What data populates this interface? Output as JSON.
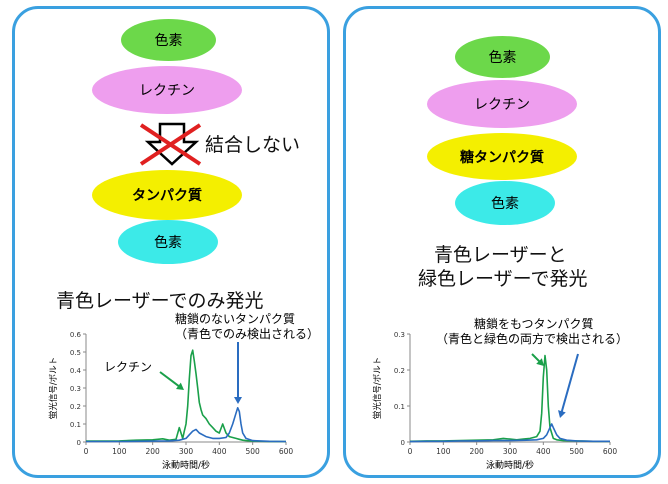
{
  "left": {
    "oval_pigment": "色素",
    "oval_lectin": "レクチン",
    "no_bind_label": "結合しない",
    "oval_protein": "タンパク質",
    "oval_pigment2": "色素",
    "caption": "青色レーザーでのみ発光",
    "annotation_glycan_line1": "糖鎖のないタンパク質",
    "annotation_glycan_line2": "（青色でのみ検出される）",
    "annotation_lectin": "レクチン"
  },
  "right": {
    "oval_pigment": "色素",
    "oval_lectin": "レクチン",
    "oval_glycoprotein": "糖タンパク質",
    "oval_pigment2": "色素",
    "caption_line1": "青色レーザーと",
    "caption_line2": "緑色レーザーで発光",
    "annotation_line1": "糖鎖をもつタンパク質",
    "annotation_line2": "（青色と緑色の両方で検出される）"
  },
  "colors": {
    "panel_border": "#3aa0e0",
    "green_trace": "#1aa04a",
    "blue_trace": "#2a6cc0"
  },
  "chart_data": [
    {
      "type": "line",
      "xlabel": "泳動時間/秒",
      "ylabel": "蛍光信号/ボルト",
      "xlim": [
        0,
        600
      ],
      "ylim": [
        0,
        0.6
      ],
      "xticks": [
        "0",
        "100",
        "200",
        "300",
        "400",
        "500",
        "600"
      ],
      "yticks": [
        "0",
        "0.1",
        "0.2",
        "0.3",
        "0.4",
        "0.5",
        "0.6"
      ],
      "series": [
        {
          "color": "green",
          "x": [
            0,
            50,
            100,
            150,
            200,
            230,
            250,
            270,
            280,
            290,
            295,
            300,
            305,
            310,
            315,
            320,
            325,
            330,
            335,
            340,
            345,
            350,
            360,
            370,
            380,
            390,
            400,
            410,
            420,
            430,
            440,
            450,
            460,
            470,
            480,
            500,
            550,
            600
          ],
          "y": [
            0.005,
            0.005,
            0.006,
            0.01,
            0.012,
            0.018,
            0.01,
            0.015,
            0.08,
            0.02,
            0.06,
            0.1,
            0.2,
            0.35,
            0.48,
            0.51,
            0.45,
            0.38,
            0.3,
            0.22,
            0.18,
            0.15,
            0.13,
            0.1,
            0.08,
            0.06,
            0.05,
            0.1,
            0.05,
            0.03,
            0.025,
            0.02,
            0.015,
            0.01,
            0.008,
            0.005,
            0.003,
            0.003
          ]
        },
        {
          "color": "blue",
          "x": [
            0,
            50,
            100,
            150,
            200,
            250,
            280,
            300,
            310,
            320,
            330,
            340,
            360,
            380,
            400,
            420,
            430,
            440,
            450,
            455,
            460,
            465,
            470,
            480,
            500,
            550,
            600
          ],
          "y": [
            0.003,
            0.003,
            0.003,
            0.004,
            0.005,
            0.006,
            0.01,
            0.02,
            0.04,
            0.06,
            0.07,
            0.05,
            0.03,
            0.02,
            0.02,
            0.025,
            0.05,
            0.1,
            0.16,
            0.19,
            0.17,
            0.1,
            0.05,
            0.02,
            0.008,
            0.004,
            0.003
          ]
        }
      ]
    },
    {
      "type": "line",
      "xlabel": "泳動時間/秒",
      "ylabel": "蛍光信号/ボルト",
      "xlim": [
        0,
        600
      ],
      "ylim": [
        0,
        0.3
      ],
      "xticks": [
        "0",
        "100",
        "200",
        "300",
        "400",
        "500",
        "600"
      ],
      "yticks": [
        "0",
        "0.1",
        "0.2",
        "0.3"
      ],
      "series": [
        {
          "color": "green",
          "x": [
            0,
            50,
            100,
            150,
            200,
            250,
            280,
            300,
            320,
            340,
            360,
            380,
            390,
            395,
            400,
            405,
            410,
            415,
            420,
            430,
            440,
            460,
            500,
            550,
            600
          ],
          "y": [
            0.002,
            0.003,
            0.003,
            0.004,
            0.005,
            0.006,
            0.01,
            0.008,
            0.006,
            0.008,
            0.01,
            0.015,
            0.03,
            0.08,
            0.18,
            0.24,
            0.2,
            0.1,
            0.04,
            0.01,
            0.006,
            0.004,
            0.003,
            0.002,
            0.002
          ]
        },
        {
          "color": "blue",
          "x": [
            0,
            50,
            100,
            150,
            200,
            250,
            300,
            350,
            380,
            400,
            410,
            420,
            425,
            430,
            440,
            450,
            470,
            500,
            550,
            600
          ],
          "y": [
            0.001,
            0.002,
            0.002,
            0.003,
            0.003,
            0.004,
            0.004,
            0.005,
            0.006,
            0.01,
            0.02,
            0.04,
            0.05,
            0.04,
            0.02,
            0.01,
            0.005,
            0.003,
            0.002,
            0.002
          ]
        }
      ]
    }
  ]
}
